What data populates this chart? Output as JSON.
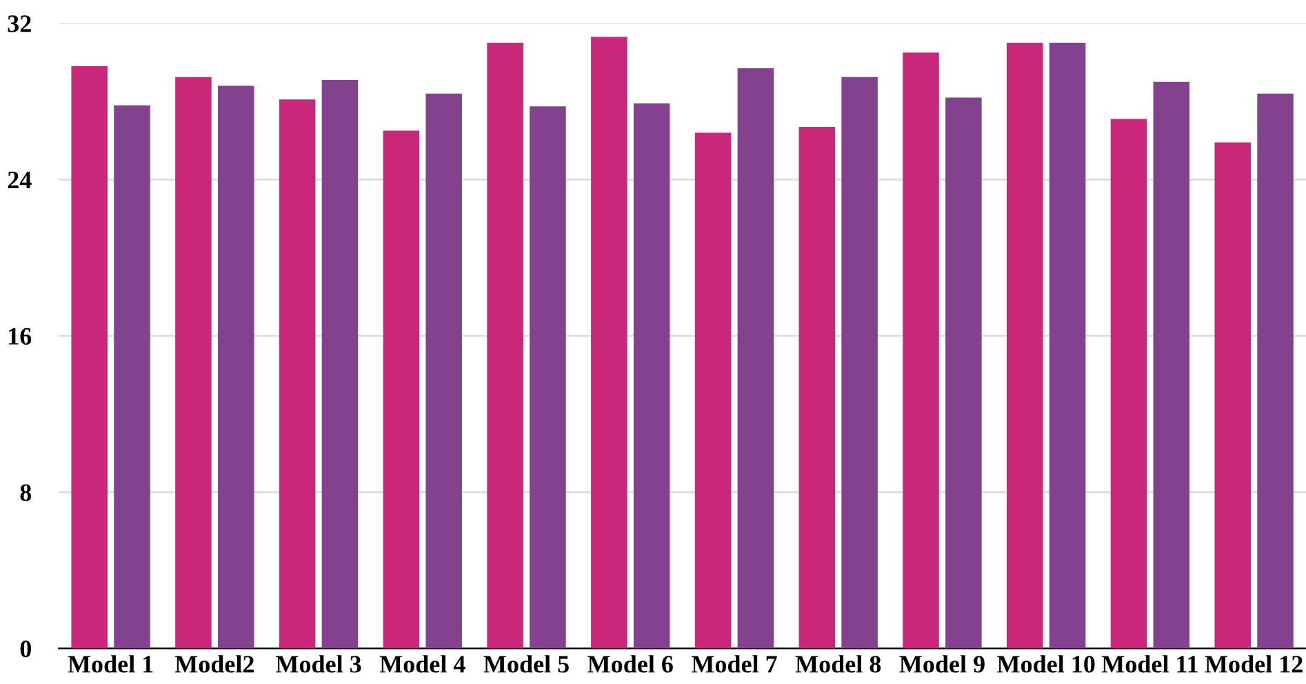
{
  "chart_data": {
    "type": "bar",
    "categories": [
      "Model 1",
      "Model2",
      "Model 3",
      "Model 4",
      "Model 5",
      "Model 6",
      "Model 7",
      "Model 8",
      "Model 9",
      "Model 10",
      "Model 11",
      "Model 12"
    ],
    "series": [
      {
        "color": "#c9287a",
        "values": [
          29.8,
          29.25,
          28.1,
          26.5,
          31.0,
          31.3,
          26.4,
          26.7,
          30.5,
          31.0,
          27.1,
          25.9
        ]
      },
      {
        "color": "#84418f",
        "values": [
          27.8,
          28.8,
          29.1,
          28.4,
          27.75,
          27.9,
          29.7,
          29.25,
          28.2,
          31.0,
          29.0,
          28.4
        ]
      }
    ],
    "ylim": [
      0,
      32
    ],
    "yticks": [
      0,
      8,
      16,
      24,
      32
    ],
    "grid": "y",
    "legend": false
  }
}
